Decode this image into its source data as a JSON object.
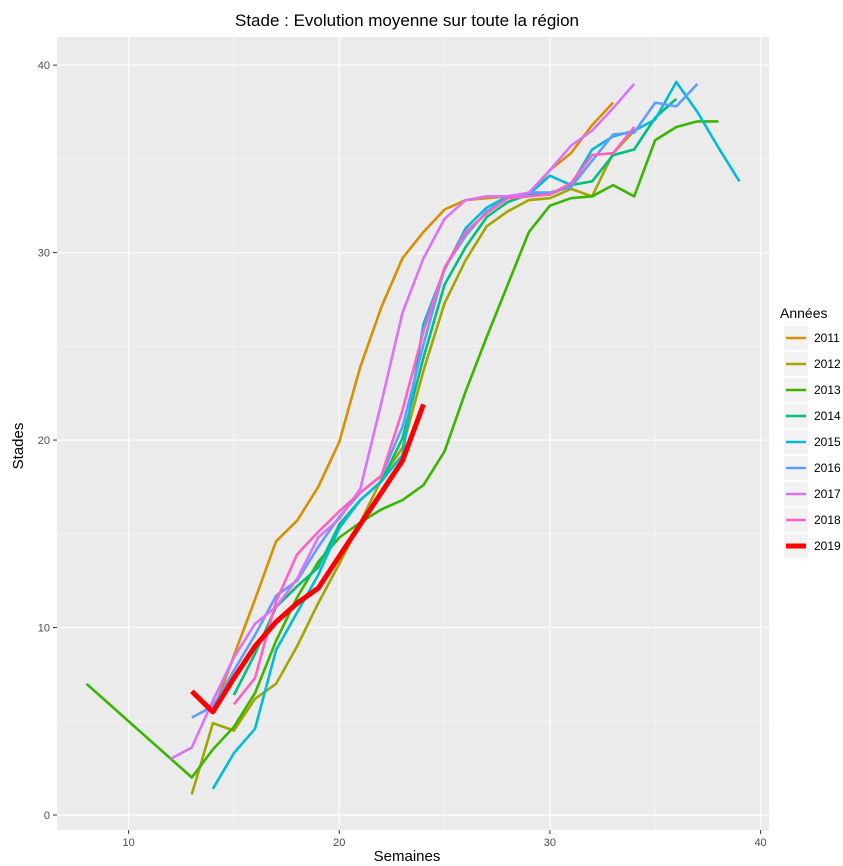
{
  "chart_data": {
    "type": "line",
    "title": "Stade : Evolution moyenne sur toute la région",
    "xlabel": "Semaines",
    "ylabel": "Stades",
    "xlim": [
      6.6,
      40.4
    ],
    "ylim": [
      -0.8,
      41.5
    ],
    "xticks": [
      10,
      20,
      30,
      40
    ],
    "yticks": [
      0,
      10,
      20,
      30,
      40
    ],
    "grid": true,
    "legend": {
      "title": "Années",
      "position": "right"
    },
    "series": [
      {
        "name": "2011",
        "color": "#d89000",
        "points": [
          [
            14,
            5.5
          ],
          [
            15,
            8.5
          ],
          [
            16,
            11.5
          ],
          [
            17,
            14.6
          ],
          [
            18,
            15.7
          ],
          [
            19,
            17.5
          ],
          [
            20,
            19.9
          ],
          [
            21,
            23.9
          ],
          [
            22,
            27.1
          ],
          [
            23,
            29.7
          ],
          [
            24,
            31.1
          ],
          [
            25,
            32.3
          ],
          [
            26,
            32.8
          ],
          [
            27,
            32.9
          ],
          [
            28,
            33
          ],
          [
            29,
            33
          ],
          [
            30,
            34.4
          ],
          [
            31,
            35.3
          ],
          [
            32,
            36.8
          ],
          [
            33,
            38
          ]
        ]
      },
      {
        "name": "2012",
        "color": "#a3a500",
        "points": [
          [
            13,
            1.1
          ],
          [
            14,
            4.9
          ],
          [
            15,
            4.5
          ],
          [
            16,
            6.2
          ],
          [
            17,
            7
          ],
          [
            18,
            9
          ],
          [
            19,
            11.3
          ],
          [
            20,
            13.4
          ],
          [
            21,
            15.6
          ],
          [
            22,
            17.9
          ],
          [
            23,
            19.6
          ],
          [
            24,
            23.7
          ],
          [
            25,
            27.3
          ],
          [
            26,
            29.6
          ],
          [
            27,
            31.4
          ],
          [
            28,
            32.2
          ],
          [
            29,
            32.8
          ],
          [
            30,
            32.9
          ],
          [
            31,
            33.4
          ],
          [
            32,
            33
          ],
          [
            33,
            35.3
          ],
          [
            34,
            36.5
          ]
        ]
      },
      {
        "name": "2013",
        "color": "#39b600",
        "points": [
          [
            8,
            7
          ],
          [
            13,
            2
          ],
          [
            14,
            3.5
          ],
          [
            15,
            4.7
          ],
          [
            16,
            6.5
          ],
          [
            17,
            9.3
          ],
          [
            18,
            11.6
          ],
          [
            19,
            13.5
          ],
          [
            20,
            14.8
          ],
          [
            21,
            15.6
          ],
          [
            22,
            16.3
          ],
          [
            23,
            16.8
          ],
          [
            24,
            17.6
          ],
          [
            25,
            19.4
          ],
          [
            26,
            22.6
          ],
          [
            27,
            25.5
          ],
          [
            28,
            28.3
          ],
          [
            29,
            31.1
          ],
          [
            30,
            32.5
          ],
          [
            31,
            32.9
          ],
          [
            32,
            33
          ],
          [
            33,
            33.6
          ],
          [
            34,
            33
          ],
          [
            35,
            36
          ],
          [
            36,
            36.7
          ],
          [
            37,
            37
          ],
          [
            38,
            37
          ]
        ]
      },
      {
        "name": "2014",
        "color": "#00bf7d",
        "points": [
          [
            15,
            6.4
          ],
          [
            16,
            8.6
          ],
          [
            17,
            11.1
          ],
          [
            18,
            12.2
          ],
          [
            19,
            13.2
          ],
          [
            20,
            15.5
          ],
          [
            21,
            16.8
          ],
          [
            22,
            17.8
          ],
          [
            23,
            20.1
          ],
          [
            24,
            24.4
          ],
          [
            25,
            28.3
          ],
          [
            26,
            30.3
          ],
          [
            27,
            31.9
          ],
          [
            28,
            32.7
          ],
          [
            29,
            33.1
          ],
          [
            30,
            33.1
          ],
          [
            31,
            33.6
          ],
          [
            32,
            33.8
          ],
          [
            33,
            35.2
          ],
          [
            34,
            35.5
          ],
          [
            35,
            37.2
          ],
          [
            36,
            38.2
          ]
        ]
      },
      {
        "name": "2015",
        "color": "#00bcd8",
        "points": [
          [
            14,
            1.4
          ],
          [
            15,
            3.3
          ],
          [
            16,
            4.6
          ],
          [
            17,
            8.8
          ],
          [
            18,
            10.8
          ],
          [
            19,
            12.8
          ],
          [
            20,
            15.3
          ],
          [
            21,
            16.8
          ],
          [
            22,
            17.8
          ],
          [
            23,
            19.2
          ],
          [
            24,
            26.2
          ],
          [
            25,
            29.1
          ],
          [
            26,
            31.3
          ],
          [
            27,
            32.4
          ],
          [
            28,
            33
          ],
          [
            29,
            33.1
          ],
          [
            30,
            34.1
          ],
          [
            31,
            33.6
          ],
          [
            32,
            35.5
          ],
          [
            33,
            36.2
          ],
          [
            34,
            36.5
          ],
          [
            35,
            37.1
          ],
          [
            36,
            39.1
          ],
          [
            37,
            37.5
          ],
          [
            38,
            35.6
          ],
          [
            39,
            33.8
          ]
        ]
      },
      {
        "name": "2016",
        "color": "#619cff",
        "points": [
          [
            13,
            5.2
          ],
          [
            14,
            5.8
          ],
          [
            15,
            7.7
          ],
          [
            16,
            9.6
          ],
          [
            17,
            11.7
          ],
          [
            18,
            12.5
          ],
          [
            19,
            14.3
          ],
          [
            20,
            15.9
          ],
          [
            21,
            17.2
          ],
          [
            22,
            18.1
          ],
          [
            23,
            20.7
          ],
          [
            24,
            25.1
          ],
          [
            25,
            29.2
          ],
          [
            26,
            30.9
          ],
          [
            27,
            32.2
          ],
          [
            28,
            32.9
          ],
          [
            29,
            33.2
          ],
          [
            30,
            33.2
          ],
          [
            31,
            33.5
          ],
          [
            32,
            34.9
          ],
          [
            33,
            36.3
          ],
          [
            34,
            36.4
          ],
          [
            35,
            38
          ],
          [
            36,
            37.8
          ],
          [
            37,
            39
          ]
        ]
      },
      {
        "name": "2017",
        "color": "#db72fb",
        "points": [
          [
            12,
            3
          ],
          [
            13,
            3.6
          ],
          [
            14,
            6.1
          ],
          [
            15,
            8.4
          ],
          [
            16,
            10.2
          ],
          [
            17,
            11.1
          ],
          [
            18,
            12.6
          ],
          [
            19,
            14.8
          ],
          [
            20,
            15.8
          ],
          [
            21,
            17.4
          ],
          [
            22,
            22
          ],
          [
            23,
            26.8
          ],
          [
            24,
            29.7
          ],
          [
            25,
            31.8
          ],
          [
            26,
            32.8
          ],
          [
            27,
            33
          ],
          [
            28,
            33
          ],
          [
            29,
            33.2
          ],
          [
            30,
            34.4
          ],
          [
            31,
            35.7
          ],
          [
            32,
            36.5
          ],
          [
            33,
            37.7
          ],
          [
            34,
            39
          ]
        ]
      },
      {
        "name": "2018",
        "color": "#ff61c3",
        "points": [
          [
            15,
            5.9
          ],
          [
            16,
            7.3
          ],
          [
            17,
            11.4
          ],
          [
            18,
            13.9
          ],
          [
            19,
            15.1
          ],
          [
            20,
            16.2
          ],
          [
            21,
            17.2
          ],
          [
            22,
            18.1
          ],
          [
            23,
            21.6
          ],
          [
            24,
            25.8
          ],
          [
            25,
            29.2
          ],
          [
            26,
            31.1
          ],
          [
            27,
            32.1
          ],
          [
            28,
            32.9
          ],
          [
            29,
            33
          ],
          [
            30,
            33.1
          ],
          [
            31,
            33.7
          ],
          [
            32,
            35.2
          ],
          [
            33,
            35.3
          ],
          [
            34,
            36.7
          ]
        ]
      },
      {
        "name": "2019",
        "color": "#ff0000",
        "thick": true,
        "points": [
          [
            13,
            6.6
          ],
          [
            14,
            5.5
          ],
          [
            15,
            7.3
          ],
          [
            16,
            9
          ],
          [
            17,
            10.3
          ],
          [
            18,
            11.3
          ],
          [
            19,
            12.1
          ],
          [
            20,
            13.8
          ],
          [
            21,
            15.5
          ],
          [
            22,
            17.2
          ],
          [
            23,
            18.9
          ],
          [
            24,
            21.9
          ]
        ]
      }
    ]
  }
}
